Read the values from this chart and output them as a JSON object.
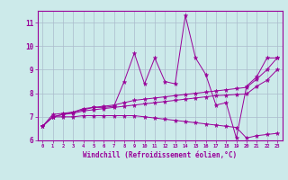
{
  "title": "",
  "xlabel": "Windchill (Refroidissement éolien,°C)",
  "ylabel": "",
  "bg_color": "#cceaea",
  "line_color": "#990099",
  "grid_color": "#aabbcc",
  "xlim": [
    -0.5,
    23.5
  ],
  "ylim": [
    6.0,
    11.5
  ],
  "xticks": [
    0,
    1,
    2,
    3,
    4,
    5,
    6,
    7,
    8,
    9,
    10,
    11,
    12,
    13,
    14,
    15,
    16,
    17,
    18,
    19,
    20,
    21,
    22,
    23
  ],
  "yticks": [
    6,
    7,
    8,
    9,
    10,
    11
  ],
  "lines": [
    {
      "x": [
        0,
        1,
        2,
        3,
        4,
        5,
        6,
        7,
        8,
        9,
        10,
        11,
        12,
        13,
        14,
        15,
        16,
        17,
        18,
        19,
        20,
        21,
        22,
        23
      ],
      "y": [
        6.6,
        7.1,
        7.15,
        7.2,
        7.35,
        7.4,
        7.4,
        7.45,
        8.5,
        9.7,
        8.4,
        9.5,
        8.5,
        8.4,
        11.3,
        9.5,
        8.8,
        7.5,
        7.6,
        6.1,
        8.3,
        8.7,
        9.5,
        9.5
      ]
    },
    {
      "x": [
        0,
        1,
        2,
        3,
        4,
        5,
        6,
        7,
        8,
        9,
        10,
        11,
        12,
        13,
        14,
        15,
        16,
        17,
        18,
        19,
        20,
        21,
        22,
        23
      ],
      "y": [
        6.6,
        7.0,
        7.1,
        7.2,
        7.3,
        7.4,
        7.45,
        7.5,
        7.6,
        7.7,
        7.75,
        7.8,
        7.85,
        7.9,
        7.95,
        8.0,
        8.05,
        8.1,
        8.15,
        8.2,
        8.25,
        8.6,
        9.0,
        9.5
      ]
    },
    {
      "x": [
        0,
        1,
        2,
        3,
        4,
        5,
        6,
        7,
        8,
        9,
        10,
        11,
        12,
        13,
        14,
        15,
        16,
        17,
        18,
        19,
        20,
        21,
        22,
        23
      ],
      "y": [
        6.6,
        7.0,
        7.1,
        7.15,
        7.25,
        7.3,
        7.35,
        7.4,
        7.45,
        7.5,
        7.55,
        7.6,
        7.65,
        7.7,
        7.75,
        7.8,
        7.85,
        7.9,
        7.92,
        7.95,
        7.97,
        8.3,
        8.55,
        9.0
      ]
    },
    {
      "x": [
        0,
        1,
        2,
        3,
        4,
        5,
        6,
        7,
        8,
        9,
        10,
        11,
        12,
        13,
        14,
        15,
        16,
        17,
        18,
        19,
        20,
        21,
        22,
        23
      ],
      "y": [
        6.6,
        7.0,
        7.0,
        7.0,
        7.05,
        7.05,
        7.05,
        7.05,
        7.05,
        7.05,
        7.0,
        6.95,
        6.9,
        6.85,
        6.8,
        6.75,
        6.7,
        6.65,
        6.6,
        6.55,
        6.1,
        6.2,
        6.25,
        6.3
      ]
    }
  ]
}
